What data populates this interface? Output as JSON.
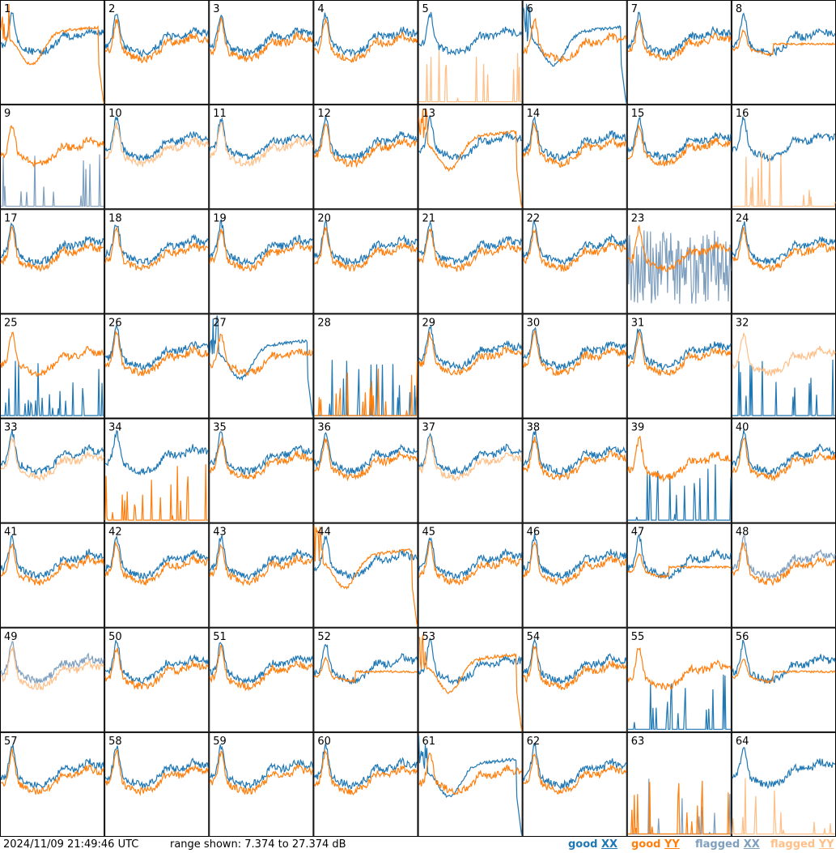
{
  "footer": {
    "timestamp": "2024/11/09 21:49:46 UTC",
    "range": "range shown: 7.374 to 27.374 dB",
    "legend": [
      {
        "word": "good",
        "pol": "XX",
        "color": "#1f77b4"
      },
      {
        "word": "good",
        "pol": "YY",
        "color": "#ff7f0e"
      },
      {
        "word": "flagged",
        "pol": "XX",
        "color": "#7f9fbf"
      },
      {
        "word": "flagged",
        "pol": "YY",
        "color": "#ffbf87"
      }
    ]
  },
  "chart_data": {
    "type": "line",
    "grid": "8x8",
    "ylim": [
      7.374,
      27.374
    ],
    "colors": {
      "good_xx": "#1f77b4",
      "good_yy": "#ff7f0e",
      "flagged_xx": "#7f9fbf",
      "flagged_yy": "#ffbf87"
    },
    "panels": [
      {
        "label": "1",
        "xx": "good",
        "yy": "good",
        "xx_shape": "normal",
        "yy_shape": "broken"
      },
      {
        "label": "2",
        "xx": "good",
        "yy": "good",
        "xx_shape": "normal",
        "yy_shape": "normal"
      },
      {
        "label": "3",
        "xx": "good",
        "yy": "good",
        "xx_shape": "normal",
        "yy_shape": "normal"
      },
      {
        "label": "4",
        "xx": "good",
        "yy": "good",
        "xx_shape": "normal",
        "yy_shape": "normal"
      },
      {
        "label": "5",
        "xx": "good",
        "yy": "flagged",
        "xx_shape": "normal",
        "yy_shape": "spikes"
      },
      {
        "label": "6",
        "xx": "good",
        "yy": "good",
        "xx_shape": "broken",
        "yy_shape": "normal"
      },
      {
        "label": "7",
        "xx": "good",
        "yy": "good",
        "xx_shape": "normal",
        "yy_shape": "normal"
      },
      {
        "label": "8",
        "xx": "good",
        "yy": "good",
        "xx_shape": "normal",
        "yy_shape": "flat"
      },
      {
        "label": "9",
        "xx": "flagged",
        "yy": "good",
        "xx_shape": "spikes",
        "yy_shape": "normal"
      },
      {
        "label": "10",
        "xx": "good",
        "yy": "flagged",
        "xx_shape": "normal",
        "yy_shape": "normal"
      },
      {
        "label": "11",
        "xx": "good",
        "yy": "flagged",
        "xx_shape": "normal",
        "yy_shape": "normal"
      },
      {
        "label": "12",
        "xx": "good",
        "yy": "good",
        "xx_shape": "normal",
        "yy_shape": "normal"
      },
      {
        "label": "13",
        "xx": "good",
        "yy": "good",
        "xx_shape": "normal",
        "yy_shape": "broken"
      },
      {
        "label": "14",
        "xx": "good",
        "yy": "good",
        "xx_shape": "normal",
        "yy_shape": "normal"
      },
      {
        "label": "15",
        "xx": "good",
        "yy": "good",
        "xx_shape": "normal",
        "yy_shape": "normal"
      },
      {
        "label": "16",
        "xx": "good",
        "yy": "flagged",
        "xx_shape": "normal",
        "yy_shape": "spikes"
      },
      {
        "label": "17",
        "xx": "good",
        "yy": "good",
        "xx_shape": "normal",
        "yy_shape": "normal"
      },
      {
        "label": "18",
        "xx": "good",
        "yy": "good",
        "xx_shape": "normal",
        "yy_shape": "normal"
      },
      {
        "label": "19",
        "xx": "good",
        "yy": "good",
        "xx_shape": "normal",
        "yy_shape": "normal"
      },
      {
        "label": "20",
        "xx": "good",
        "yy": "good",
        "xx_shape": "normal",
        "yy_shape": "normal"
      },
      {
        "label": "21",
        "xx": "good",
        "yy": "good",
        "xx_shape": "normal",
        "yy_shape": "normal"
      },
      {
        "label": "22",
        "xx": "good",
        "yy": "good",
        "xx_shape": "normal",
        "yy_shape": "normal"
      },
      {
        "label": "23",
        "xx": "flagged",
        "yy": "good",
        "xx_shape": "noise",
        "yy_shape": "normal"
      },
      {
        "label": "24",
        "xx": "good",
        "yy": "good",
        "xx_shape": "normal",
        "yy_shape": "normal"
      },
      {
        "label": "25",
        "xx": "good",
        "yy": "good",
        "xx_shape": "spikes",
        "yy_shape": "normal"
      },
      {
        "label": "26",
        "xx": "good",
        "yy": "good",
        "xx_shape": "normal",
        "yy_shape": "normal"
      },
      {
        "label": "27",
        "xx": "good",
        "yy": "good",
        "xx_shape": "broken",
        "yy_shape": "normal"
      },
      {
        "label": "28",
        "xx": "good",
        "yy": "good",
        "xx_shape": "spikes",
        "yy_shape": "spikes"
      },
      {
        "label": "29",
        "xx": "good",
        "yy": "good",
        "xx_shape": "normal",
        "yy_shape": "normal"
      },
      {
        "label": "30",
        "xx": "good",
        "yy": "good",
        "xx_shape": "normal",
        "yy_shape": "normal"
      },
      {
        "label": "31",
        "xx": "good",
        "yy": "good",
        "xx_shape": "normal",
        "yy_shape": "normal"
      },
      {
        "label": "32",
        "xx": "good",
        "yy": "flagged",
        "xx_shape": "spikes",
        "yy_shape": "normal"
      },
      {
        "label": "33",
        "xx": "good",
        "yy": "flagged",
        "xx_shape": "normal",
        "yy_shape": "normal"
      },
      {
        "label": "34",
        "xx": "good",
        "yy": "good",
        "xx_shape": "normal",
        "yy_shape": "spikes"
      },
      {
        "label": "35",
        "xx": "good",
        "yy": "good",
        "xx_shape": "normal",
        "yy_shape": "normal"
      },
      {
        "label": "36",
        "xx": "good",
        "yy": "good",
        "xx_shape": "normal",
        "yy_shape": "normal"
      },
      {
        "label": "37",
        "xx": "good",
        "yy": "flagged",
        "xx_shape": "normal",
        "yy_shape": "normal"
      },
      {
        "label": "38",
        "xx": "good",
        "yy": "good",
        "xx_shape": "normal",
        "yy_shape": "normal"
      },
      {
        "label": "39",
        "xx": "good",
        "yy": "good",
        "xx_shape": "spikes",
        "yy_shape": "normal"
      },
      {
        "label": "40",
        "xx": "good",
        "yy": "good",
        "xx_shape": "normal",
        "yy_shape": "normal"
      },
      {
        "label": "41",
        "xx": "good",
        "yy": "good",
        "xx_shape": "normal",
        "yy_shape": "normal"
      },
      {
        "label": "42",
        "xx": "good",
        "yy": "good",
        "xx_shape": "normal",
        "yy_shape": "normal"
      },
      {
        "label": "43",
        "xx": "good",
        "yy": "good",
        "xx_shape": "normal",
        "yy_shape": "normal"
      },
      {
        "label": "44",
        "xx": "good",
        "yy": "good",
        "xx_shape": "normal",
        "yy_shape": "broken"
      },
      {
        "label": "45",
        "xx": "good",
        "yy": "good",
        "xx_shape": "normal",
        "yy_shape": "normal"
      },
      {
        "label": "46",
        "xx": "good",
        "yy": "good",
        "xx_shape": "normal",
        "yy_shape": "normal"
      },
      {
        "label": "47",
        "xx": "good",
        "yy": "good",
        "xx_shape": "normal",
        "yy_shape": "flat"
      },
      {
        "label": "48",
        "xx": "flagged",
        "yy": "good",
        "xx_shape": "normal",
        "yy_shape": "normal"
      },
      {
        "label": "49",
        "xx": "flagged",
        "yy": "flagged",
        "xx_shape": "normal",
        "yy_shape": "normal"
      },
      {
        "label": "50",
        "xx": "good",
        "yy": "good",
        "xx_shape": "normal",
        "yy_shape": "normal"
      },
      {
        "label": "51",
        "xx": "good",
        "yy": "good",
        "xx_shape": "normal",
        "yy_shape": "normal"
      },
      {
        "label": "52",
        "xx": "good",
        "yy": "good",
        "xx_shape": "normal",
        "yy_shape": "flat"
      },
      {
        "label": "53",
        "xx": "good",
        "yy": "good",
        "xx_shape": "normal",
        "yy_shape": "broken"
      },
      {
        "label": "54",
        "xx": "good",
        "yy": "good",
        "xx_shape": "normal",
        "yy_shape": "normal"
      },
      {
        "label": "55",
        "xx": "good",
        "yy": "good",
        "xx_shape": "spikes",
        "yy_shape": "normal"
      },
      {
        "label": "56",
        "xx": "good",
        "yy": "good",
        "xx_shape": "normal",
        "yy_shape": "flat"
      },
      {
        "label": "57",
        "xx": "good",
        "yy": "good",
        "xx_shape": "normal",
        "yy_shape": "normal"
      },
      {
        "label": "58",
        "xx": "good",
        "yy": "good",
        "xx_shape": "normal",
        "yy_shape": "normal"
      },
      {
        "label": "59",
        "xx": "good",
        "yy": "good",
        "xx_shape": "normal",
        "yy_shape": "normal"
      },
      {
        "label": "60",
        "xx": "good",
        "yy": "good",
        "xx_shape": "normal",
        "yy_shape": "normal"
      },
      {
        "label": "61",
        "xx": "good",
        "yy": "good",
        "xx_shape": "broken",
        "yy_shape": "normal"
      },
      {
        "label": "62",
        "xx": "good",
        "yy": "good",
        "xx_shape": "normal",
        "yy_shape": "normal"
      },
      {
        "label": "63",
        "xx": "flagged",
        "yy": "good",
        "xx_shape": "spikes",
        "yy_shape": "spikes"
      },
      {
        "label": "64",
        "xx": "good",
        "yy": "flagged",
        "xx_shape": "normal",
        "yy_shape": "spikes"
      }
    ]
  }
}
